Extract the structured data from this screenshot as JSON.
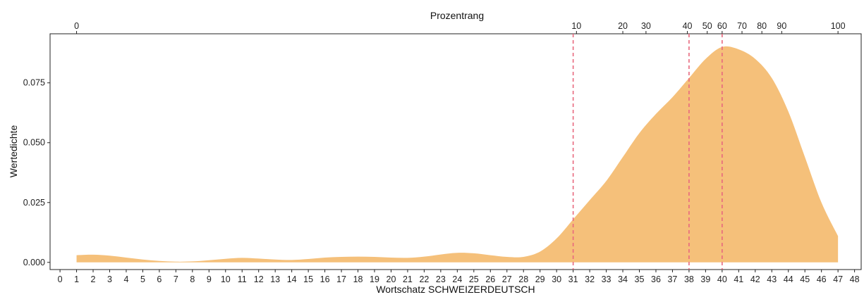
{
  "chart_data": {
    "type": "area",
    "title": "",
    "xlabel": "Wortschatz SCHWEIZERDEUTSCH",
    "ylabel": "Wertedichte",
    "top_axis_label": "Prozentrang",
    "xlim": [
      -0.6,
      48.4
    ],
    "ylim": [
      -0.003,
      0.0955
    ],
    "x_ticks": [
      0,
      1,
      2,
      3,
      4,
      5,
      6,
      7,
      8,
      9,
      10,
      11,
      12,
      13,
      14,
      15,
      16,
      17,
      18,
      19,
      20,
      21,
      22,
      23,
      24,
      25,
      26,
      27,
      28,
      29,
      30,
      31,
      32,
      33,
      34,
      35,
      36,
      37,
      38,
      39,
      40,
      41,
      42,
      43,
      44,
      45,
      46,
      47,
      48
    ],
    "y_ticks": [
      0.0,
      0.025,
      0.05,
      0.075
    ],
    "y_tick_labels": [
      "0.000",
      "0.025",
      "0.050",
      "0.075"
    ],
    "top_ticks": [
      {
        "label": "0",
        "x": 1.0
      },
      {
        "label": "10",
        "x": 31.2
      },
      {
        "label": "20",
        "x": 34.0
      },
      {
        "label": "30",
        "x": 35.4
      },
      {
        "label": "40",
        "x": 37.9
      },
      {
        "label": "50",
        "x": 39.1
      },
      {
        "label": "60",
        "x": 40.0
      },
      {
        "label": "70",
        "x": 41.2
      },
      {
        "label": "80",
        "x": 42.4
      },
      {
        "label": "90",
        "x": 43.6
      },
      {
        "label": "100",
        "x": 47.0
      }
    ],
    "reference_lines": [
      31,
      38,
      40
    ],
    "series": [
      {
        "x": [
          1,
          2,
          3,
          4,
          5,
          6,
          7,
          8,
          9,
          10,
          11,
          12,
          13,
          14,
          15,
          16,
          17,
          18,
          19,
          20,
          21,
          22,
          23,
          24,
          25,
          26,
          27,
          28,
          29,
          30,
          31,
          32,
          33,
          34,
          35,
          36,
          37,
          38,
          39,
          40,
          41,
          42,
          43,
          44,
          45,
          46,
          47
        ],
        "values": [
          0.003,
          0.0032,
          0.0028,
          0.002,
          0.0012,
          0.0006,
          0.0003,
          0.0004,
          0.0009,
          0.0015,
          0.0019,
          0.0016,
          0.0012,
          0.001,
          0.0014,
          0.002,
          0.0023,
          0.0024,
          0.0023,
          0.002,
          0.0019,
          0.0024,
          0.0033,
          0.004,
          0.0038,
          0.003,
          0.0023,
          0.0023,
          0.0045,
          0.01,
          0.018,
          0.026,
          0.034,
          0.044,
          0.054,
          0.062,
          0.069,
          0.077,
          0.085,
          0.09,
          0.089,
          0.085,
          0.077,
          0.063,
          0.044,
          0.025,
          0.011
        ]
      }
    ],
    "colors": {
      "fill": "#f5c07a",
      "reference_line": "#e8687e",
      "axis": "#222222"
    }
  }
}
